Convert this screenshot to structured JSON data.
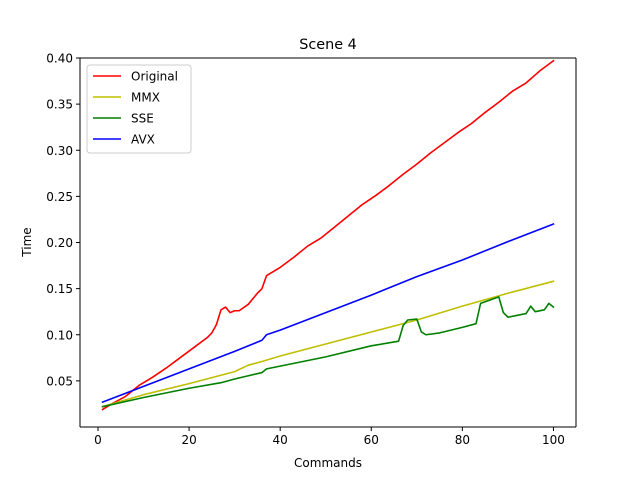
{
  "chart_data": {
    "type": "line",
    "title": "Scene 4",
    "xlabel": "Commands",
    "ylabel": "Time",
    "xlim": [
      -3.95,
      104.95
    ],
    "ylim": [
      0.0,
      0.4
    ],
    "xticks": [
      0,
      20,
      40,
      60,
      80,
      100
    ],
    "yticks": [
      0.05,
      0.1,
      0.15,
      0.2,
      0.25,
      0.3,
      0.35,
      0.4
    ],
    "ytick_labels": [
      "0.05",
      "0.10",
      "0.15",
      "0.20",
      "0.25",
      "0.30",
      "0.35",
      "0.40"
    ],
    "legend_position": "top-left",
    "grid": false,
    "series": [
      {
        "name": "Original",
        "color": "#ff0000",
        "points": [
          [
            1,
            0.019
          ],
          [
            3,
            0.025
          ],
          [
            6,
            0.033
          ],
          [
            9,
            0.045
          ],
          [
            12,
            0.054
          ],
          [
            15,
            0.064
          ],
          [
            18,
            0.075
          ],
          [
            21,
            0.086
          ],
          [
            24,
            0.097
          ],
          [
            25,
            0.102
          ],
          [
            26,
            0.111
          ],
          [
            27,
            0.127
          ],
          [
            28,
            0.13
          ],
          [
            29,
            0.124
          ],
          [
            30,
            0.126
          ],
          [
            31,
            0.126
          ],
          [
            33,
            0.133
          ],
          [
            35,
            0.145
          ],
          [
            36,
            0.15
          ],
          [
            37,
            0.164
          ],
          [
            40,
            0.173
          ],
          [
            43,
            0.184
          ],
          [
            46,
            0.196
          ],
          [
            49,
            0.205
          ],
          [
            52,
            0.217
          ],
          [
            55,
            0.229
          ],
          [
            58,
            0.241
          ],
          [
            61,
            0.251
          ],
          [
            64,
            0.262
          ],
          [
            67,
            0.274
          ],
          [
            70,
            0.285
          ],
          [
            73,
            0.297
          ],
          [
            76,
            0.308
          ],
          [
            79,
            0.319
          ],
          [
            82,
            0.329
          ],
          [
            85,
            0.341
          ],
          [
            88,
            0.352
          ],
          [
            91,
            0.364
          ],
          [
            94,
            0.373
          ],
          [
            97,
            0.386
          ],
          [
            100,
            0.397
          ]
        ]
      },
      {
        "name": "MMX",
        "color": "#bfbf00",
        "points": [
          [
            1,
            0.022
          ],
          [
            10,
            0.035
          ],
          [
            20,
            0.047
          ],
          [
            30,
            0.06
          ],
          [
            33,
            0.067
          ],
          [
            36,
            0.071
          ],
          [
            40,
            0.077
          ],
          [
            50,
            0.09
          ],
          [
            60,
            0.103
          ],
          [
            70,
            0.116
          ],
          [
            80,
            0.131
          ],
          [
            90,
            0.145
          ],
          [
            100,
            0.158
          ]
        ]
      },
      {
        "name": "SSE",
        "color": "#008000",
        "points": [
          [
            1,
            0.022
          ],
          [
            10,
            0.032
          ],
          [
            20,
            0.042
          ],
          [
            27,
            0.048
          ],
          [
            30,
            0.052
          ],
          [
            36,
            0.059
          ],
          [
            37,
            0.063
          ],
          [
            40,
            0.066
          ],
          [
            50,
            0.076
          ],
          [
            60,
            0.088
          ],
          [
            66,
            0.093
          ],
          [
            67,
            0.11
          ],
          [
            68,
            0.116
          ],
          [
            70,
            0.117
          ],
          [
            71,
            0.103
          ],
          [
            72,
            0.1
          ],
          [
            75,
            0.102
          ],
          [
            80,
            0.108
          ],
          [
            83,
            0.112
          ],
          [
            84,
            0.134
          ],
          [
            88,
            0.141
          ],
          [
            89,
            0.124
          ],
          [
            90,
            0.119
          ],
          [
            94,
            0.123
          ],
          [
            95,
            0.131
          ],
          [
            96,
            0.125
          ],
          [
            98,
            0.127
          ],
          [
            99,
            0.134
          ],
          [
            100,
            0.13
          ]
        ]
      },
      {
        "name": "AVX",
        "color": "#0000ff",
        "points": [
          [
            1,
            0.027
          ],
          [
            10,
            0.044
          ],
          [
            20,
            0.063
          ],
          [
            30,
            0.082
          ],
          [
            36,
            0.094
          ],
          [
            37,
            0.1
          ],
          [
            40,
            0.105
          ],
          [
            50,
            0.124
          ],
          [
            60,
            0.143
          ],
          [
            70,
            0.163
          ],
          [
            80,
            0.181
          ],
          [
            90,
            0.201
          ],
          [
            100,
            0.22
          ]
        ]
      }
    ]
  }
}
